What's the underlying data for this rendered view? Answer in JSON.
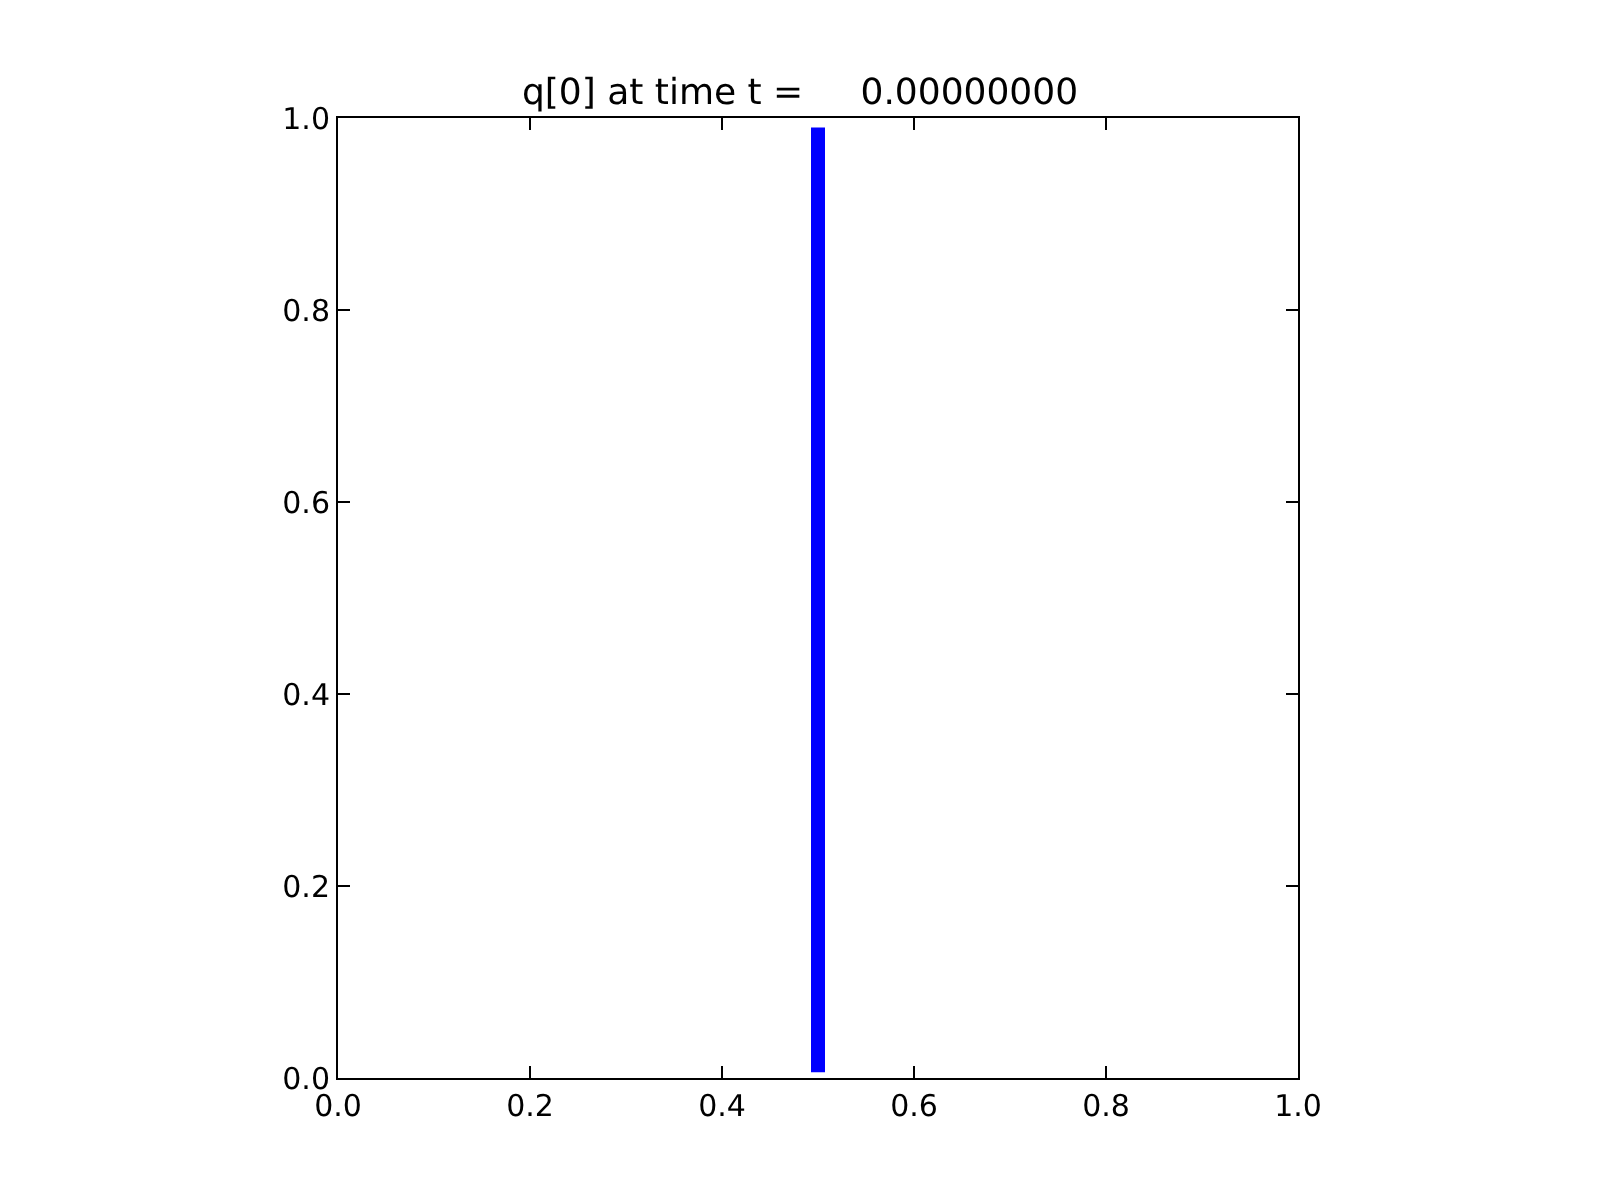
{
  "chart_data": {
    "type": "line",
    "title": "q[0] at time t =     0.00000000",
    "x": [
      0.5,
      0.5
    ],
    "series": [
      {
        "color": "#0000ff",
        "values": [
          0.006,
          0.99
        ]
      }
    ],
    "xlim": [
      0.0,
      1.0
    ],
    "xticks": [
      {
        "value": 0,
        "label": "0.0"
      },
      {
        "value": 0.2,
        "label": "0.2"
      },
      {
        "value": 0.4,
        "label": "0.4"
      },
      {
        "value": 0.6,
        "label": "0.6"
      },
      {
        "value": 0.8,
        "label": "0.8"
      },
      {
        "value": 1,
        "label": "1.0"
      }
    ],
    "ylim": [
      0.0,
      1.0
    ],
    "yticks": [
      {
        "value": 0,
        "label": "0.0"
      },
      {
        "value": 0.2,
        "label": "0.2"
      },
      {
        "value": 0.4,
        "label": "0.4"
      },
      {
        "value": 0.6,
        "label": "0.6"
      },
      {
        "value": 0.8,
        "label": "0.8"
      },
      {
        "value": 1,
        "label": "1.0"
      }
    ],
    "marker": "none",
    "line_style": "solid"
  }
}
